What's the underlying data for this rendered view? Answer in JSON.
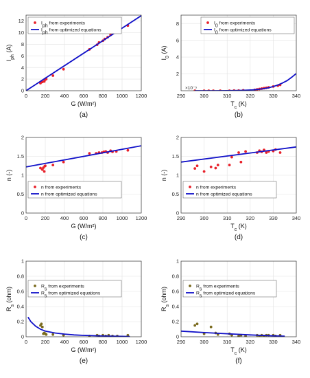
{
  "chart_data": [
    {
      "type": "scatter",
      "panel_label": "(a)",
      "xlabel": "G (W/m²)",
      "ylabel": "I_ph (A)",
      "xlim": [
        0,
        1200
      ],
      "ylim": [
        0,
        13
      ],
      "xticks": [
        0,
        200,
        400,
        600,
        800,
        1000,
        1200
      ],
      "yticks": [
        0,
        2,
        4,
        6,
        8,
        10,
        12
      ],
      "grid": true,
      "legend": "top-left",
      "series": [
        {
          "name": "I_ph from experiments",
          "kind": "points",
          "color": "#e8212a",
          "x": [
            150,
            170,
            190,
            200,
            210,
            280,
            390,
            660,
            740,
            760,
            800,
            820,
            850,
            880,
            900,
            920,
            950,
            970,
            1060
          ],
          "y": [
            1.3,
            1.5,
            1.6,
            1.9,
            2.0,
            2.6,
            3.7,
            7.1,
            7.9,
            8.3,
            8.6,
            8.9,
            9.2,
            9.6,
            9.9,
            10.1,
            10.4,
            10.7,
            11.2
          ]
        },
        {
          "name": "I_ph from optimized equations",
          "kind": "line",
          "color": "#1010c8",
          "x": [
            0,
            1200
          ],
          "y": [
            0,
            12.9
          ]
        }
      ]
    },
    {
      "type": "scatter",
      "panel_label": "(b)",
      "xlabel": "T_c (K)",
      "ylabel": "I_0 (A)",
      "xlim": [
        290,
        340
      ],
      "ylim": [
        0,
        9
      ],
      "xticks": [
        290,
        300,
        310,
        320,
        330,
        340
      ],
      "yticks": [
        2,
        4,
        6,
        8
      ],
      "axis_exponent": "×10⁻⁵",
      "grid": true,
      "legend": "top-right",
      "series": [
        {
          "name": "I_0 from experiments",
          "kind": "points",
          "color": "#e8212a",
          "x": [
            296,
            300,
            302,
            304,
            307,
            311,
            313,
            315,
            317,
            322,
            323,
            324,
            325,
            326,
            327,
            328,
            330,
            332,
            333
          ],
          "y": [
            0.0,
            0.0,
            0.0,
            0.0,
            0.0,
            0.0,
            0.02,
            0.02,
            0.05,
            0.1,
            0.15,
            0.2,
            0.25,
            0.3,
            0.35,
            0.4,
            0.5,
            0.6,
            0.7
          ]
        },
        {
          "name": "I_0 from optimized equations",
          "kind": "line",
          "color": "#1010c8",
          "x": [
            296,
            300,
            305,
            310,
            315,
            318,
            321,
            324,
            326,
            328,
            330,
            332,
            334,
            336,
            338,
            340
          ],
          "y": [
            0.0,
            0.0,
            0.0,
            0.01,
            0.03,
            0.06,
            0.1,
            0.17,
            0.25,
            0.35,
            0.5,
            0.68,
            0.92,
            1.2,
            1.6,
            2.05
          ]
        }
      ]
    },
    {
      "type": "scatter",
      "panel_label": "(c)",
      "xlabel": "G (W/m²)",
      "ylabel": "n (-)",
      "xlim": [
        0,
        1200
      ],
      "ylim": [
        0,
        2
      ],
      "xticks": [
        0,
        200,
        400,
        600,
        800,
        1000,
        1200
      ],
      "yticks": [
        0,
        0.5,
        1,
        1.5,
        2
      ],
      "grid": true,
      "legend": "bottom-center",
      "series": [
        {
          "name": "n from experiments",
          "kind": "points",
          "color": "#e8212a",
          "x": [
            150,
            170,
            180,
            190,
            195,
            200,
            280,
            390,
            660,
            730,
            760,
            790,
            810,
            830,
            850,
            880,
            900,
            940,
            1060
          ],
          "y": [
            1.19,
            1.15,
            1.2,
            1.1,
            1.24,
            1.25,
            1.27,
            1.35,
            1.58,
            1.58,
            1.6,
            1.6,
            1.62,
            1.63,
            1.6,
            1.65,
            1.62,
            1.63,
            1.66
          ]
        },
        {
          "name": "n from optimized equations",
          "kind": "line",
          "color": "#1010c8",
          "x": [
            0,
            1200
          ],
          "y": [
            1.22,
            1.78
          ]
        }
      ]
    },
    {
      "type": "scatter",
      "panel_label": "(d)",
      "xlabel": "T_c (K)",
      "ylabel": "n (-)",
      "xlim": [
        290,
        340
      ],
      "ylim": [
        0,
        2
      ],
      "xticks": [
        290,
        300,
        310,
        320,
        330,
        340
      ],
      "yticks": [
        0,
        0.5,
        1,
        1.5,
        2
      ],
      "grid": true,
      "legend": "bottom-center",
      "series": [
        {
          "name": "n from experiments",
          "kind": "points",
          "color": "#e8212a",
          "x": [
            296,
            297,
            300,
            303,
            305,
            306,
            311,
            312,
            315,
            316,
            318,
            323,
            324,
            325,
            326,
            327,
            328,
            330,
            331,
            333
          ],
          "y": [
            1.18,
            1.25,
            1.1,
            1.22,
            1.19,
            1.27,
            1.27,
            1.48,
            1.6,
            1.35,
            1.63,
            1.6,
            1.65,
            1.62,
            1.67,
            1.6,
            1.63,
            1.64,
            1.68,
            1.6
          ]
        },
        {
          "name": "n from optimized equations",
          "kind": "line",
          "color": "#1010c8",
          "x": [
            290,
            340
          ],
          "y": [
            1.35,
            1.75
          ]
        }
      ]
    },
    {
      "type": "scatter",
      "panel_label": "(e)",
      "xlabel": "G (W/m²)",
      "ylabel": "R_s (ohm)",
      "xlim": [
        0,
        1200
      ],
      "ylim": [
        0,
        1
      ],
      "xticks": [
        0,
        200,
        400,
        600,
        800,
        1000,
        1200
      ],
      "yticks": [
        0,
        0.2,
        0.4,
        0.6,
        0.8,
        1
      ],
      "grid": true,
      "legend": "top-center",
      "series": [
        {
          "name": "R_s from experiments",
          "kind": "points",
          "color": "#7a6a1e",
          "x": [
            150,
            160,
            170,
            180,
            190,
            200,
            210,
            280,
            390,
            660,
            740,
            760,
            800,
            830,
            860,
            900,
            950,
            1060
          ],
          "y": [
            0.15,
            0.17,
            0.13,
            0.04,
            0.05,
            0.04,
            0.03,
            0.03,
            0.02,
            0.01,
            0.02,
            0.01,
            0.02,
            0.01,
            0.02,
            0.01,
            0.01,
            0.02
          ]
        },
        {
          "name": "R_s from optimized equations",
          "kind": "line",
          "color": "#1010c8",
          "x": [
            20,
            50,
            100,
            150,
            200,
            300,
            400,
            500,
            600,
            800,
            1000,
            1080
          ],
          "y": [
            0.26,
            0.2,
            0.14,
            0.1,
            0.075,
            0.05,
            0.035,
            0.025,
            0.018,
            0.01,
            0.005,
            0.004
          ]
        }
      ]
    },
    {
      "type": "scatter",
      "panel_label": "(f)",
      "xlabel": "T_c (K)",
      "ylabel": "R_s (ohm)",
      "xlim": [
        290,
        340
      ],
      "ylim": [
        0,
        1
      ],
      "xticks": [
        290,
        300,
        310,
        320,
        330,
        340
      ],
      "yticks": [
        0,
        0.2,
        0.4,
        0.6,
        0.8,
        1
      ],
      "grid": true,
      "legend": "top-center",
      "series": [
        {
          "name": "R_s from experiments",
          "kind": "points",
          "color": "#7a6a1e",
          "x": [
            296,
            297,
            300,
            303,
            305,
            306,
            311,
            312,
            315,
            316,
            318,
            323,
            324,
            325,
            326,
            327,
            328,
            330,
            331,
            333
          ],
          "y": [
            0.15,
            0.17,
            0.04,
            0.13,
            0.05,
            0.03,
            0.04,
            0.02,
            0.01,
            0.02,
            0.01,
            0.02,
            0.01,
            0.02,
            0.01,
            0.02,
            0.02,
            0.02,
            0.01,
            0.02
          ]
        },
        {
          "name": "R_s from optimized equations",
          "kind": "line",
          "color": "#1010c8",
          "x": [
            290,
            300,
            310,
            320,
            330,
            335
          ],
          "y": [
            0.075,
            0.055,
            0.04,
            0.025,
            0.012,
            0.008
          ]
        }
      ]
    }
  ]
}
